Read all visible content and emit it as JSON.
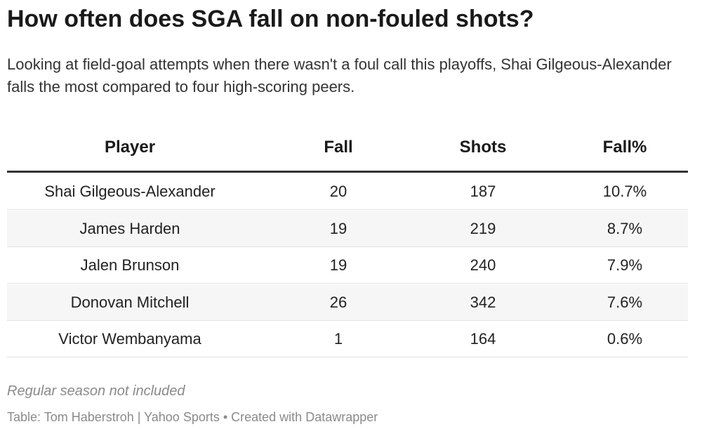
{
  "header": {
    "title": "How often does SGA fall on non-fouled shots?",
    "subtitle": "Looking at field-goal attempts when there wasn't a foul call this playoffs, Shai Gilgeous-Alexander falls the most compared to four high-scoring peers."
  },
  "table": {
    "columns": [
      "Player",
      "Fall",
      "Shots",
      "Fall%"
    ],
    "rows": [
      [
        "Shai Gilgeous-Alexander",
        "20",
        "187",
        "10.7%"
      ],
      [
        "James Harden",
        "19",
        "219",
        "8.7%"
      ],
      [
        "Jalen Brunson",
        "19",
        "240",
        "7.9%"
      ],
      [
        "Donovan Mitchell",
        "26",
        "342",
        "7.6%"
      ],
      [
        "Victor Wembanyama",
        "1",
        "164",
        "0.6%"
      ]
    ]
  },
  "footer": {
    "note": "Regular season not included",
    "source": "Table: Tom Haberstroh | Yahoo Sports • Created with Datawrapper"
  }
}
